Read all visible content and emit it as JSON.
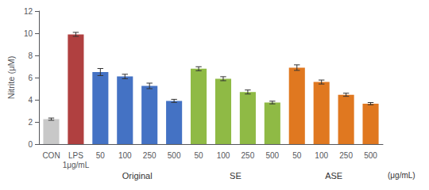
{
  "chart_data": {
    "type": "bar",
    "ylabel": "Nitrite (μM)",
    "categories": [
      "CON",
      "LPS\n1μg/mL",
      "50",
      "100",
      "250",
      "500",
      "50",
      "100",
      "250",
      "500",
      "50",
      "100",
      "250",
      "500"
    ],
    "values": [
      2.25,
      9.9,
      6.5,
      6.1,
      5.25,
      3.9,
      6.8,
      5.9,
      4.7,
      3.75,
      6.9,
      5.6,
      4.45,
      3.65
    ],
    "errors": [
      0.1,
      0.18,
      0.32,
      0.2,
      0.25,
      0.14,
      0.18,
      0.18,
      0.18,
      0.12,
      0.25,
      0.18,
      0.14,
      0.1
    ],
    "colors": [
      "#c8c8c8",
      "#b04040",
      "#4472c4",
      "#4472c4",
      "#4472c4",
      "#4472c4",
      "#8fba45",
      "#8fba45",
      "#8fba45",
      "#8fba45",
      "#e07820",
      "#e07820",
      "#e07820",
      "#e07820"
    ],
    "groups": [
      null,
      null,
      "Original",
      "Original",
      "Original",
      "Original",
      "SE",
      "SE",
      "SE",
      "SE",
      "ASE",
      "ASE",
      "ASE",
      "ASE"
    ],
    "annotations": [
      "(μg/mL)"
    ],
    "ylim": [
      0,
      12
    ],
    "yticks": [
      0,
      2,
      4,
      6,
      8,
      10,
      12
    ],
    "grid": false
  }
}
